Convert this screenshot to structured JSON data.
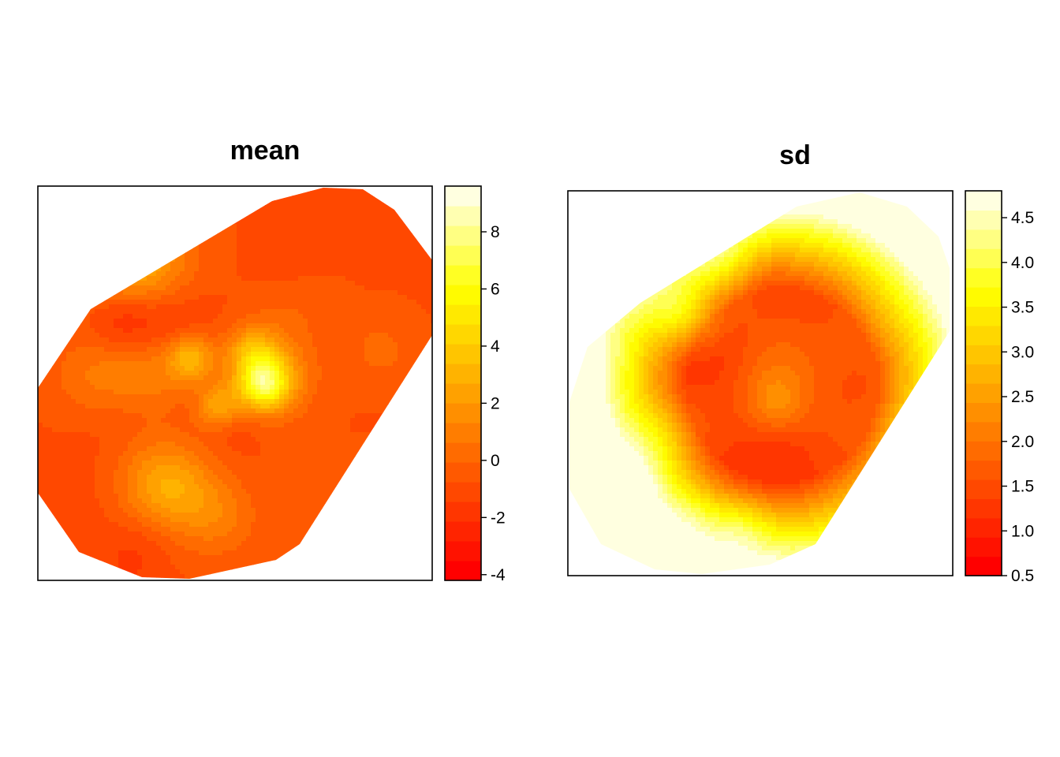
{
  "chart_data": [
    {
      "type": "heatmap",
      "title": "mean",
      "legend_placement": "right",
      "colorbar": {
        "min": -4.2,
        "max": 9.6,
        "ticks": [
          -4,
          -2,
          0,
          2,
          4,
          6,
          8
        ],
        "tick_labels": [
          "-4",
          "-2",
          "0",
          "2",
          "4",
          "6",
          "8"
        ],
        "n_colors": 20
      },
      "field": {
        "base": -0.8,
        "amp": 6.5,
        "seed": 7
      },
      "color_low": "#FF0000",
      "color_high": "#FFFFE0"
    },
    {
      "type": "heatmap",
      "title": "sd",
      "legend_placement": "right",
      "colorbar": {
        "min": 0.5,
        "max": 4.8,
        "ticks": [
          0.5,
          1.0,
          1.5,
          2.0,
          2.5,
          3.0,
          3.5,
          4.0,
          4.5
        ],
        "tick_labels": [
          "0.5",
          "1.0",
          "1.5",
          "2.0",
          "2.5",
          "3.0",
          "3.5",
          "4.0",
          "4.5"
        ],
        "n_colors": 20
      },
      "field": {
        "base": 1.4,
        "amp": 1.1,
        "seed": 19
      },
      "color_low": "#FF0000",
      "color_high": "#FFFFE0"
    }
  ]
}
